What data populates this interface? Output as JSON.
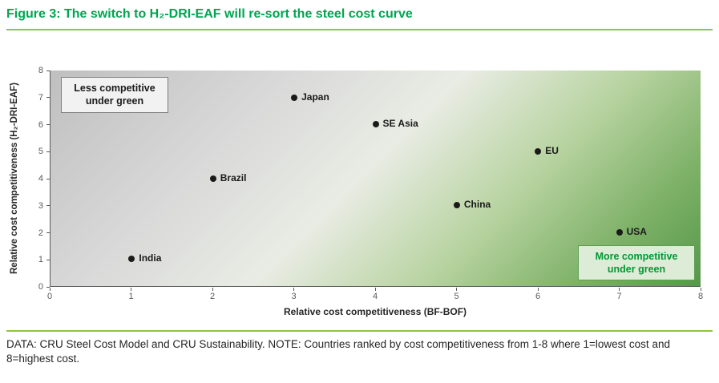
{
  "figure": {
    "title": "Figure 3: The switch to H₂-DRI-EAF will re-sort the steel cost curve",
    "note": "DATA: CRU Steel Cost Model and CRU Sustainability. NOTE: Countries ranked by cost competitiveness from 1-8 where 1=lowest cost and 8=highest cost."
  },
  "chart_data": {
    "type": "scatter",
    "title": "Figure 3: The switch to H₂-DRI-EAF will re-sort the steel cost curve",
    "xlabel": "Relative cost competitiveness (BF-BOF)",
    "ylabel": "Relative cost competitiveness (H₂-DRI-EAF)",
    "xlim": [
      0,
      8
    ],
    "ylim": [
      0,
      8
    ],
    "xticks": [
      0,
      1,
      2,
      3,
      4,
      5,
      6,
      7,
      8
    ],
    "yticks": [
      0,
      1,
      2,
      3,
      4,
      5,
      6,
      7,
      8
    ],
    "grid": false,
    "legend": "none",
    "points": [
      {
        "label": "India",
        "x": 1,
        "y": 1
      },
      {
        "label": "Brazil",
        "x": 2,
        "y": 4
      },
      {
        "label": "Japan",
        "x": 3,
        "y": 7
      },
      {
        "label": "SE Asia",
        "x": 4,
        "y": 6
      },
      {
        "label": "China",
        "x": 5,
        "y": 3
      },
      {
        "label": "EU",
        "x": 6,
        "y": 5
      },
      {
        "label": "USA",
        "x": 7,
        "y": 2
      }
    ],
    "annotations": {
      "less_competitive": "Less competitive under green",
      "more_competitive": "More competitive under green"
    },
    "background": "diagonal gradient: grey top-left to green bottom-right"
  },
  "colors": {
    "title_green": "#00A551",
    "rule_green": "#8DC63F",
    "plot_grey": "#BFBFBF",
    "plot_green": "#55984A",
    "marker_black": "#1A1A1A",
    "more_box_text_green": "#009933"
  }
}
